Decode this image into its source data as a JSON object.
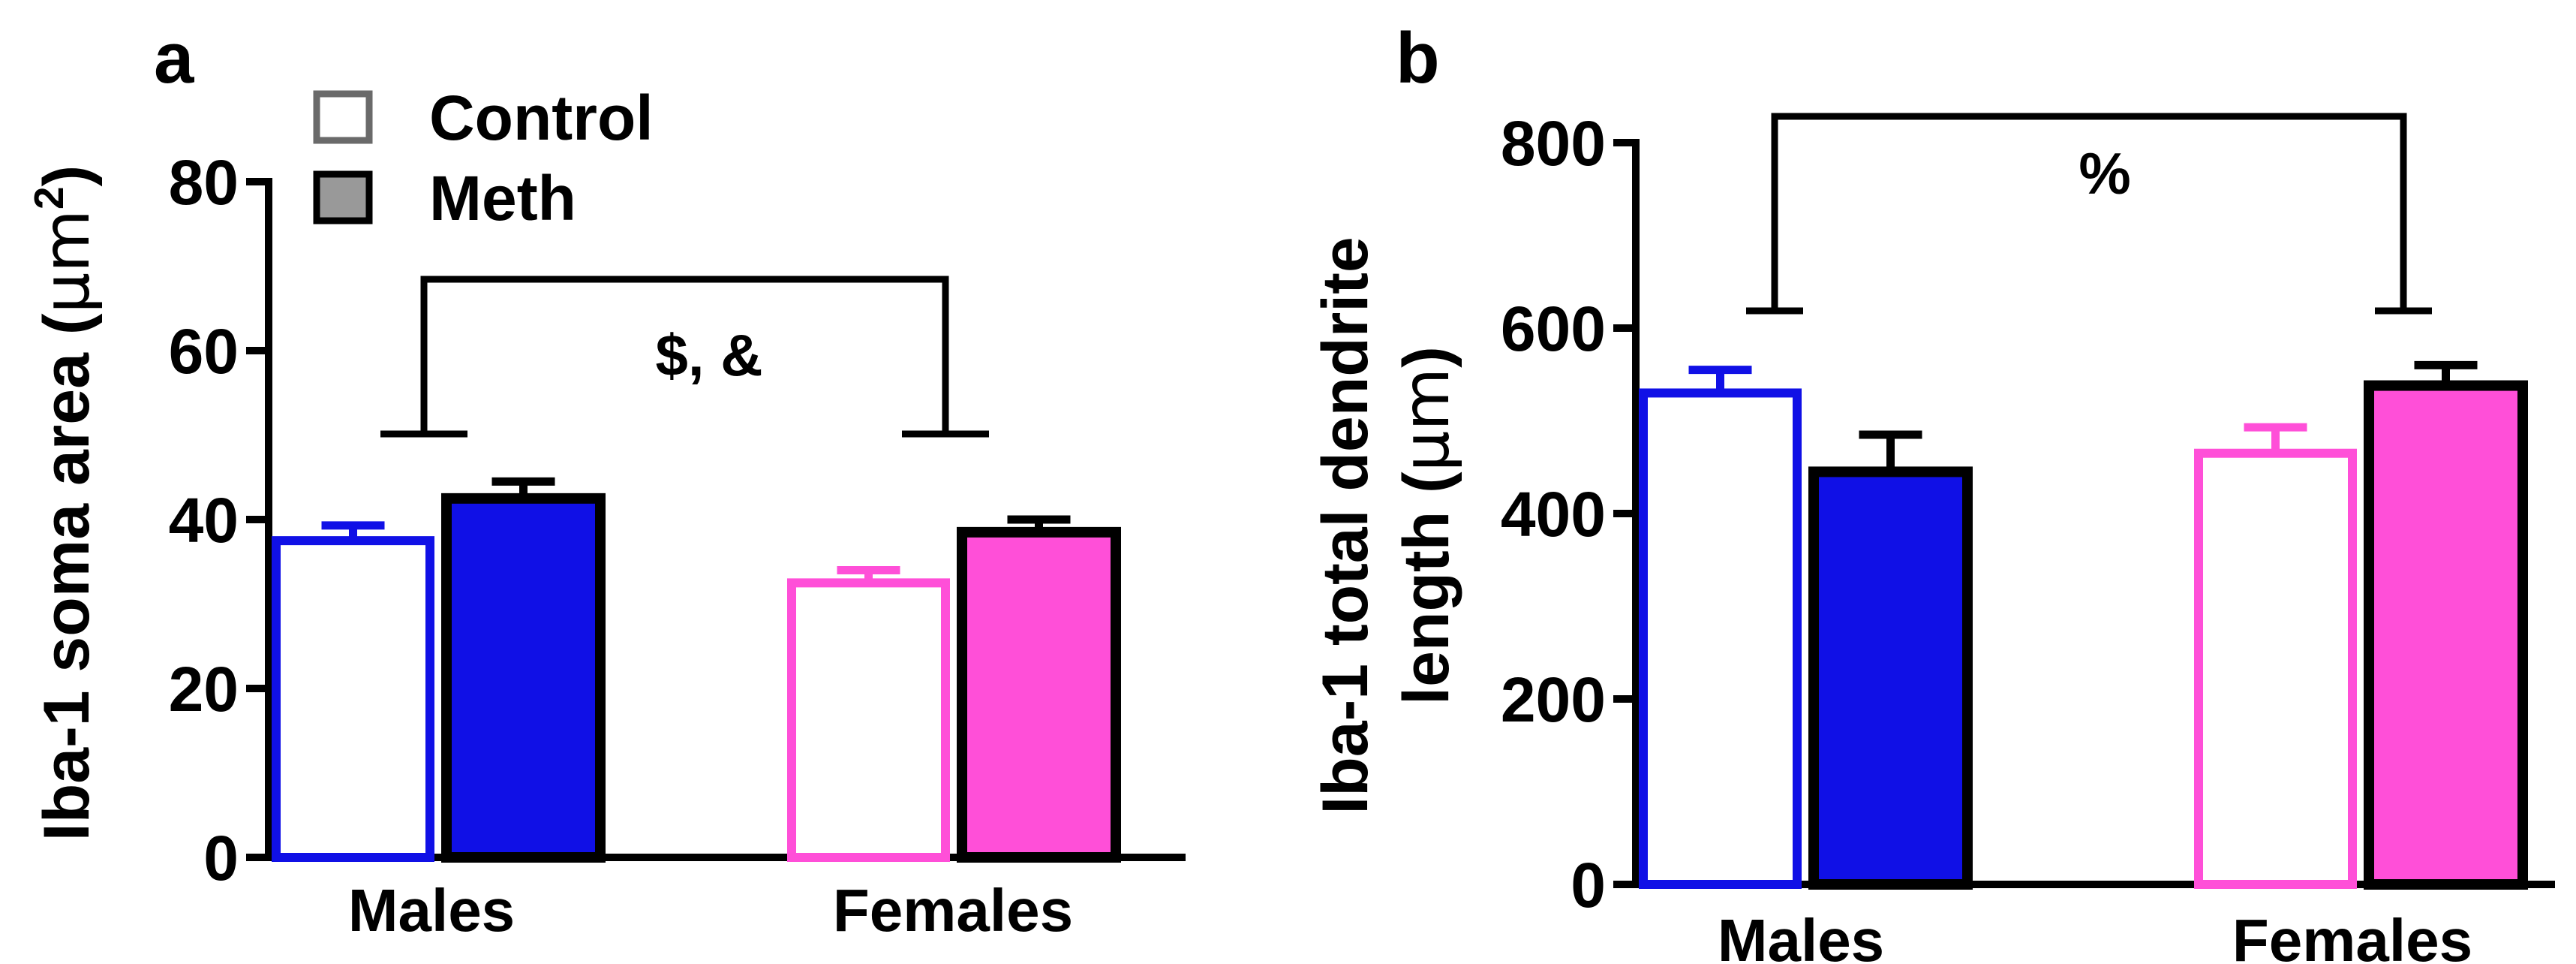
{
  "chart_data": [
    {
      "panel": "a",
      "type": "bar",
      "ylabel": "Iba-1 soma area (µm²)",
      "ylabel_main": "Iba-1 soma area (",
      "ylabel_unit": "μm",
      "ylabel_sup": "2",
      "ylabel_close": ")",
      "ylim": [
        0,
        80
      ],
      "yticks": [
        "0",
        "20",
        "40",
        "60",
        "80"
      ],
      "categories": [
        "Males",
        "Females"
      ],
      "series": [
        {
          "name": "Control",
          "values": [
            37.5,
            32.5
          ],
          "errors": [
            1.8,
            1.5
          ]
        },
        {
          "name": "Meth",
          "values": [
            42.5,
            38.5
          ],
          "errors": [
            2.0,
            1.5
          ]
        }
      ],
      "group_colors": {
        "Males": "#1010e6",
        "Females": "#ff4fd8"
      },
      "significance": {
        "label": "$, &",
        "between": [
          "Males",
          "Females"
        ]
      },
      "legend": {
        "placement": "top-left",
        "entries": [
          "Control",
          "Meth"
        ]
      }
    },
    {
      "panel": "b",
      "type": "bar",
      "ylabel": "Iba-1 total dendrite length (µm)",
      "ylabel_line1": "Iba-1 total dendrite",
      "ylabel_line2_main": "length (",
      "ylabel_line2_unit": "μm",
      "ylabel_line2_close": ")",
      "ylim": [
        0,
        800
      ],
      "yticks": [
        "0",
        "200",
        "400",
        "600",
        "800"
      ],
      "categories": [
        "Males",
        "Females"
      ],
      "series": [
        {
          "name": "Control",
          "values": [
            530,
            465
          ],
          "errors": [
            25,
            28
          ]
        },
        {
          "name": "Meth",
          "values": [
            445,
            538
          ],
          "errors": [
            40,
            22
          ]
        }
      ],
      "group_colors": {
        "Males": "#1010e6",
        "Females": "#ff4fd8"
      },
      "significance": {
        "label": "%",
        "between": [
          "Males",
          "Females"
        ]
      }
    }
  ],
  "colors": {
    "males": "#1010e6",
    "females": "#ff4fd8",
    "meth_legend": "#999999",
    "outline": "#000000"
  }
}
